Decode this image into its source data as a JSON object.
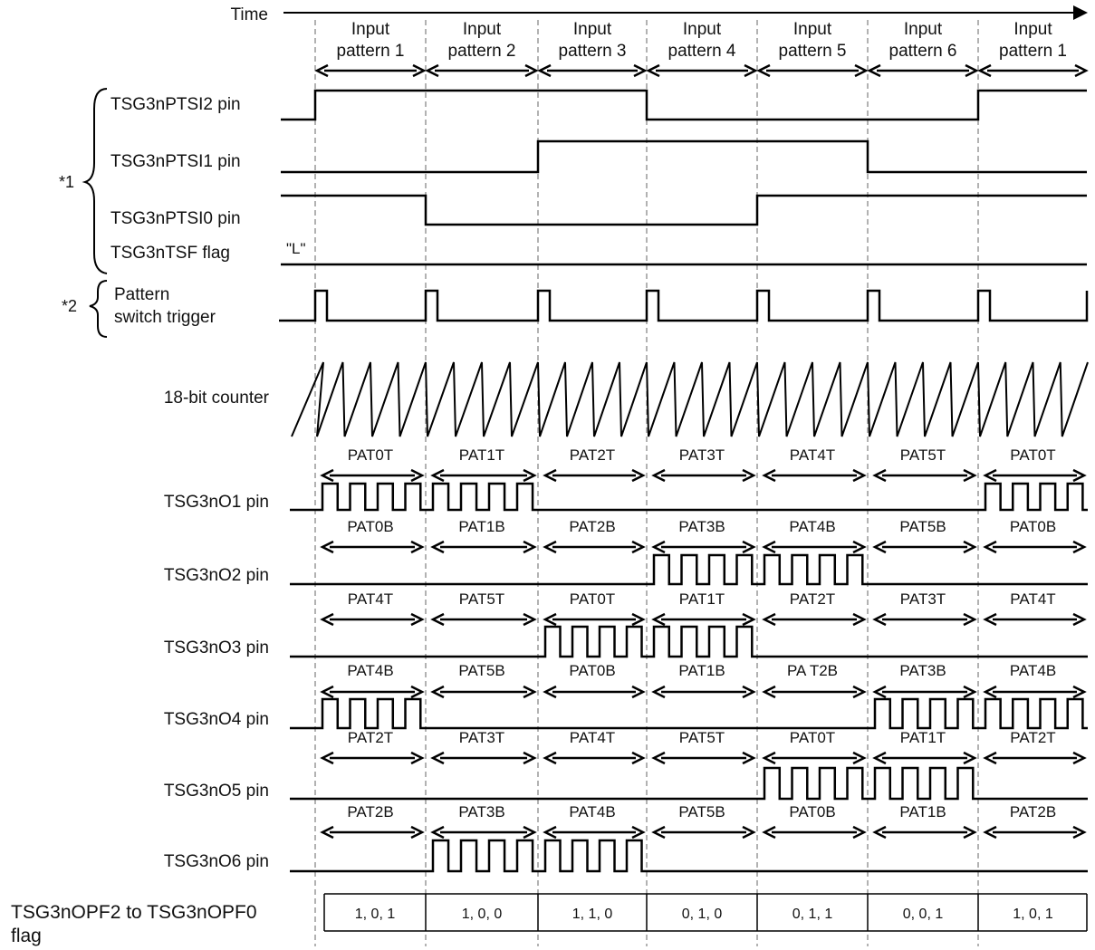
{
  "time_label": "Time",
  "columns": [
    {
      "line1": "Input",
      "line2": "pattern 1"
    },
    {
      "line1": "Input",
      "line2": "pattern 2"
    },
    {
      "line1": "Input",
      "line2": "pattern 3"
    },
    {
      "line1": "Input",
      "line2": "pattern 4"
    },
    {
      "line1": "Input",
      "line2": "pattern 5"
    },
    {
      "line1": "Input",
      "line2": "pattern 6"
    },
    {
      "line1": "Input",
      "line2": "pattern 1"
    }
  ],
  "group1": {
    "marker": "*1",
    "signals": [
      {
        "label": "TSG3nPTSI2 pin",
        "initial_level": 0,
        "levels": [
          1,
          1,
          1,
          0,
          0,
          0,
          1
        ]
      },
      {
        "label": "TSG3nPTSI1 pin",
        "initial_level": 0,
        "levels": [
          0,
          0,
          1,
          1,
          1,
          0,
          0
        ]
      },
      {
        "label": "TSG3nPTSI0 pin",
        "initial_level": 1,
        "levels": [
          1,
          0,
          0,
          0,
          1,
          1,
          1
        ]
      },
      {
        "label": "TSG3nTSF flag",
        "initial_level": 0,
        "levels": [
          0,
          0,
          0,
          0,
          0,
          0,
          0
        ],
        "level_note": "\"L\""
      }
    ]
  },
  "group2": {
    "marker": "*2",
    "label_line1": "Pattern",
    "label_line2": "switch trigger"
  },
  "counter_label": "18-bit counter",
  "output_pins": [
    {
      "label": "TSG3nO1 pin",
      "periods": [
        "PAT0T",
        "PAT1T",
        "PAT2T",
        "PAT3T",
        "PAT4T",
        "PAT5T",
        "PAT0T"
      ],
      "active": [
        1,
        1,
        0,
        0,
        0,
        0,
        1
      ]
    },
    {
      "label": "TSG3nO2 pin",
      "periods": [
        "PAT0B",
        "PAT1B",
        "PAT2B",
        "PAT3B",
        "PAT4B",
        "PAT5B",
        "PAT0B"
      ],
      "active": [
        0,
        0,
        0,
        1,
        1,
        0,
        0
      ]
    },
    {
      "label": "TSG3nO3 pin",
      "periods": [
        "PAT4T",
        "PAT5T",
        "PAT0T",
        "PAT1T",
        "PAT2T",
        "PAT3T",
        "PAT4T"
      ],
      "active": [
        0,
        0,
        1,
        1,
        0,
        0,
        0
      ]
    },
    {
      "label": "TSG3nO4 pin",
      "periods": [
        "PAT4B",
        "PAT5B",
        "PAT0B",
        "PAT1B",
        "PA T2B",
        "PAT3B",
        "PAT4B"
      ],
      "active": [
        1,
        0,
        0,
        0,
        0,
        1,
        1
      ]
    },
    {
      "label": "TSG3nO5 pin",
      "periods": [
        "PAT2T",
        "PAT3T",
        "PAT4T",
        "PAT5T",
        "PAT0T",
        "PAT1T",
        "PAT2T"
      ],
      "active": [
        0,
        0,
        0,
        0,
        1,
        1,
        0
      ]
    },
    {
      "label": "TSG3nO6 pin",
      "periods": [
        "PAT2B",
        "PAT3B",
        "PAT4B",
        "PAT5B",
        "PAT0B",
        "PAT1B",
        "PAT2B"
      ],
      "active": [
        0,
        1,
        1,
        0,
        0,
        0,
        0
      ]
    }
  ],
  "flag_row": {
    "label_line1": "TSG3nOPF2 to TSG3nOPF0",
    "label_line2": "flag",
    "values": [
      "1, 0, 1",
      "1, 0, 0",
      "1, 1, 0",
      "0, 1, 0",
      "0, 1, 1",
      "0, 0, 1",
      "1, 0, 1"
    ]
  }
}
